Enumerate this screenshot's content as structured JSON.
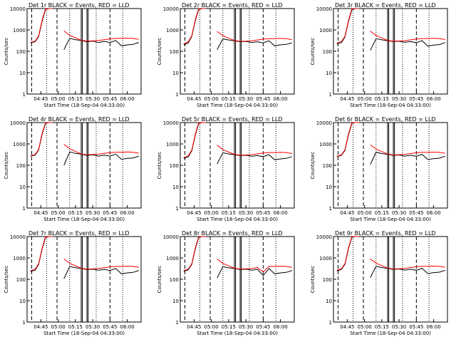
{
  "figure": {
    "background": "#ffffff",
    "axis_color": "#000000",
    "events_color": "#000000",
    "lld_color": "#ff0000",
    "title_suffix": "BLACK = Events, RED = LLD",
    "xlabel": "Start Time (18-Sep-04 04:33:00)",
    "ylabel": "Counts/sec",
    "xtick_labels": [
      "04:45",
      "05:00",
      "05:15",
      "05:30",
      "05:45",
      "06:00"
    ],
    "ytick_labels": [
      "1",
      "10",
      "100",
      "1000",
      "10000"
    ]
  },
  "chart_data": [
    {
      "type": "line",
      "title": "Det 1r BLACK = Events, RED = LLD",
      "xlabel": "Start Time (18-Sep-04 04:33:00)",
      "ylabel": "Counts/sec",
      "y_scale": "log",
      "ylim": [
        1,
        10000
      ],
      "x": [
        "04:36",
        "04:40",
        "04:43",
        "04:46",
        "04:49",
        "04:52",
        "04:55",
        "05:00",
        "05:05",
        "05:10",
        "05:15",
        "05:20",
        "05:25",
        "05:30",
        "05:35",
        "05:40",
        "05:45",
        "05:50",
        "05:55",
        "06:00",
        "06:05",
        "06:10"
      ],
      "series": [
        {
          "name": "Events",
          "values": [
            250,
            280,
            480,
            2500,
            9000,
            10000,
            10000,
            null,
            120,
            400,
            350,
            320,
            280,
            300,
            260,
            290,
            260,
            320,
            180,
            200,
            210,
            260
          ]
        },
        {
          "name": "LLD",
          "values": [
            260,
            300,
            520,
            2800,
            10000,
            10000,
            10000,
            null,
            900,
            560,
            430,
            330,
            300,
            310,
            320,
            350,
            380,
            400,
            400,
            410,
            400,
            360
          ]
        }
      ]
    },
    {
      "type": "line",
      "title": "Det 2r BLACK = Events, RED = LLD",
      "xlabel": "Start Time (18-Sep-04 04:33:00)",
      "ylabel": "Counts/sec",
      "y_scale": "log",
      "ylim": [
        1,
        10000
      ],
      "x": [
        "04:36",
        "04:40",
        "04:43",
        "04:46",
        "04:49",
        "04:52",
        "04:55",
        "05:00",
        "05:05",
        "05:10",
        "05:15",
        "05:20",
        "05:25",
        "05:30",
        "05:35",
        "05:40",
        "05:45",
        "05:50",
        "05:55",
        "06:00",
        "06:05",
        "06:10"
      ],
      "series": [
        {
          "name": "Events",
          "values": [
            200,
            250,
            500,
            2600,
            9000,
            10000,
            10000,
            null,
            120,
            380,
            340,
            310,
            280,
            290,
            260,
            280,
            250,
            310,
            180,
            200,
            210,
            250
          ]
        },
        {
          "name": "LLD",
          "values": [
            220,
            280,
            540,
            2900,
            10000,
            10000,
            10000,
            null,
            850,
            540,
            410,
            320,
            290,
            300,
            310,
            340,
            370,
            390,
            390,
            400,
            390,
            350
          ]
        }
      ]
    },
    {
      "type": "line",
      "title": "Det 3r BLACK = Events, RED = LLD",
      "xlabel": "Start Time (18-Sep-04 04:33:00)",
      "ylabel": "Counts/sec",
      "y_scale": "log",
      "ylim": [
        1,
        10000
      ],
      "x": [
        "04:36",
        "04:40",
        "04:43",
        "04:46",
        "04:49",
        "04:52",
        "04:55",
        "05:00",
        "05:05",
        "05:10",
        "05:15",
        "05:20",
        "05:25",
        "05:30",
        "05:35",
        "05:40",
        "05:45",
        "05:50",
        "05:55",
        "06:00",
        "06:05",
        "06:10"
      ],
      "series": [
        {
          "name": "Events",
          "values": [
            220,
            260,
            470,
            2400,
            8800,
            10000,
            10000,
            null,
            110,
            390,
            345,
            315,
            285,
            295,
            265,
            285,
            255,
            315,
            175,
            195,
            205,
            255
          ]
        },
        {
          "name": "LLD",
          "values": [
            240,
            290,
            510,
            2700,
            10000,
            10000,
            10000,
            null,
            880,
            550,
            420,
            325,
            295,
            305,
            315,
            345,
            375,
            395,
            395,
            405,
            395,
            355
          ]
        }
      ]
    },
    {
      "type": "line",
      "title": "Det 4r BLACK = Events, RED = LLD",
      "xlabel": "Start Time (18-Sep-04 04:33:00)",
      "ylabel": "Counts/sec",
      "y_scale": "log",
      "ylim": [
        1,
        10000
      ],
      "x": [
        "04:36",
        "04:40",
        "04:43",
        "04:46",
        "04:49",
        "04:52",
        "04:55",
        "05:00",
        "05:05",
        "05:10",
        "05:15",
        "05:20",
        "05:25",
        "05:30",
        "05:35",
        "05:40",
        "05:45",
        "05:50",
        "05:55",
        "06:00",
        "06:05",
        "06:10"
      ],
      "series": [
        {
          "name": "Events",
          "values": [
            270,
            300,
            520,
            2700,
            9200,
            10000,
            10000,
            null,
            100,
            420,
            360,
            330,
            290,
            310,
            270,
            300,
            270,
            330,
            190,
            210,
            220,
            270
          ]
        },
        {
          "name": "LLD",
          "values": [
            280,
            320,
            560,
            3000,
            10000,
            10000,
            10000,
            null,
            950,
            600,
            450,
            340,
            310,
            320,
            330,
            360,
            390,
            410,
            410,
            420,
            410,
            370
          ]
        }
      ]
    },
    {
      "type": "line",
      "title": "Det 5r BLACK = Events, RED = LLD",
      "xlabel": "Start Time (18-Sep-04 04:33:00)",
      "ylabel": "Counts/sec",
      "y_scale": "log",
      "ylim": [
        1,
        10000
      ],
      "x": [
        "04:36",
        "04:40",
        "04:43",
        "04:46",
        "04:49",
        "04:52",
        "04:55",
        "05:00",
        "05:05",
        "05:10",
        "05:15",
        "05:20",
        "05:25",
        "05:30",
        "05:35",
        "05:40",
        "05:45",
        "05:50",
        "05:55",
        "06:00",
        "06:05",
        "06:10"
      ],
      "series": [
        {
          "name": "Events",
          "values": [
            210,
            250,
            480,
            2500,
            8900,
            10000,
            10000,
            null,
            115,
            390,
            340,
            315,
            285,
            295,
            265,
            285,
            255,
            315,
            180,
            200,
            210,
            255
          ]
        },
        {
          "name": "LLD",
          "values": [
            230,
            280,
            520,
            2800,
            10000,
            10000,
            10000,
            null,
            870,
            545,
            415,
            325,
            295,
            305,
            315,
            345,
            375,
            395,
            395,
            405,
            395,
            355
          ]
        }
      ]
    },
    {
      "type": "line",
      "title": "Det 6r BLACK = Events, RED = LLD",
      "xlabel": "Start Time (18-Sep-04 04:33:00)",
      "ylabel": "Counts/sec",
      "y_scale": "log",
      "ylim": [
        1,
        10000
      ],
      "x": [
        "04:36",
        "04:40",
        "04:43",
        "04:46",
        "04:49",
        "04:52",
        "04:55",
        "05:00",
        "05:05",
        "05:10",
        "05:15",
        "05:20",
        "05:25",
        "05:30",
        "05:35",
        "05:40",
        "05:45",
        "05:50",
        "05:55",
        "06:00",
        "06:05",
        "06:10"
      ],
      "series": [
        {
          "name": "Events",
          "values": [
            260,
            290,
            500,
            2600,
            9100,
            10000,
            10000,
            null,
            110,
            410,
            355,
            325,
            290,
            305,
            270,
            295,
            265,
            325,
            185,
            205,
            215,
            265
          ]
        },
        {
          "name": "LLD",
          "values": [
            270,
            310,
            540,
            2900,
            10000,
            10000,
            10000,
            null,
            920,
            580,
            440,
            335,
            305,
            315,
            325,
            355,
            385,
            405,
            405,
            415,
            405,
            365
          ]
        }
      ]
    },
    {
      "type": "line",
      "title": "Det 7r BLACK = Events, RED = LLD",
      "xlabel": "Start Time (18-Sep-04 04:33:00)",
      "ylabel": "Counts/sec",
      "y_scale": "log",
      "ylim": [
        1,
        10000
      ],
      "x": [
        "04:36",
        "04:40",
        "04:43",
        "04:46",
        "04:49",
        "04:52",
        "04:55",
        "05:00",
        "05:05",
        "05:10",
        "05:15",
        "05:20",
        "05:25",
        "05:30",
        "05:35",
        "05:40",
        "05:45",
        "05:50",
        "05:55",
        "06:00",
        "06:05",
        "06:10"
      ],
      "series": [
        {
          "name": "Events",
          "values": [
            230,
            270,
            490,
            2500,
            9000,
            10000,
            10000,
            null,
            105,
            400,
            350,
            320,
            285,
            300,
            265,
            290,
            260,
            320,
            180,
            200,
            210,
            260
          ]
        },
        {
          "name": "LLD",
          "values": [
            250,
            300,
            530,
            2800,
            10000,
            10000,
            10000,
            null,
            900,
            560,
            430,
            330,
            300,
            310,
            320,
            350,
            380,
            400,
            400,
            410,
            400,
            360
          ]
        }
      ]
    },
    {
      "type": "line",
      "title": "Det 8r BLACK = Events, RED = LLD",
      "xlabel": "Start Time (18-Sep-04 04:33:00)",
      "ylabel": "Counts/sec",
      "y_scale": "log",
      "ylim": [
        1,
        10000
      ],
      "x": [
        "04:36",
        "04:40",
        "04:43",
        "04:46",
        "04:49",
        "04:52",
        "04:55",
        "05:00",
        "05:05",
        "05:10",
        "05:15",
        "05:20",
        "05:25",
        "05:30",
        "05:35",
        "05:40",
        "05:45",
        "05:50",
        "05:55",
        "06:00",
        "06:05",
        "06:10"
      ],
      "series": [
        {
          "name": "Events",
          "values": [
            240,
            280,
            500,
            2600,
            9000,
            10000,
            10000,
            null,
            115,
            395,
            345,
            320,
            285,
            300,
            265,
            290,
            150,
            320,
            180,
            200,
            210,
            260
          ]
        },
        {
          "name": "LLD",
          "values": [
            260,
            300,
            540,
            2900,
            10000,
            10000,
            10000,
            null,
            880,
            555,
            425,
            330,
            300,
            310,
            320,
            350,
            220,
            400,
            400,
            410,
            400,
            360
          ]
        }
      ]
    },
    {
      "type": "line",
      "title": "Det 9r BLACK = Events, RED = LLD",
      "xlabel": "Start Time (18-Sep-04 04:33:00)",
      "ylabel": "Counts/sec",
      "y_scale": "log",
      "ylim": [
        1,
        10000
      ],
      "x": [
        "04:36",
        "04:40",
        "04:43",
        "04:46",
        "04:49",
        "04:52",
        "04:55",
        "05:00",
        "05:05",
        "05:10",
        "05:15",
        "05:20",
        "05:25",
        "05:30",
        "05:35",
        "05:40",
        "05:45",
        "05:50",
        "05:55",
        "06:00",
        "06:05",
        "06:10"
      ],
      "series": [
        {
          "name": "Events",
          "values": [
            250,
            290,
            510,
            2700,
            9100,
            10000,
            10000,
            null,
            120,
            405,
            355,
            325,
            290,
            305,
            270,
            295,
            265,
            325,
            185,
            205,
            215,
            265
          ]
        },
        {
          "name": "LLD",
          "values": [
            270,
            310,
            550,
            3000,
            10000,
            10000,
            10000,
            null,
            900,
            570,
            435,
            335,
            305,
            315,
            325,
            355,
            385,
            405,
            405,
            415,
            405,
            365
          ]
        }
      ]
    }
  ]
}
